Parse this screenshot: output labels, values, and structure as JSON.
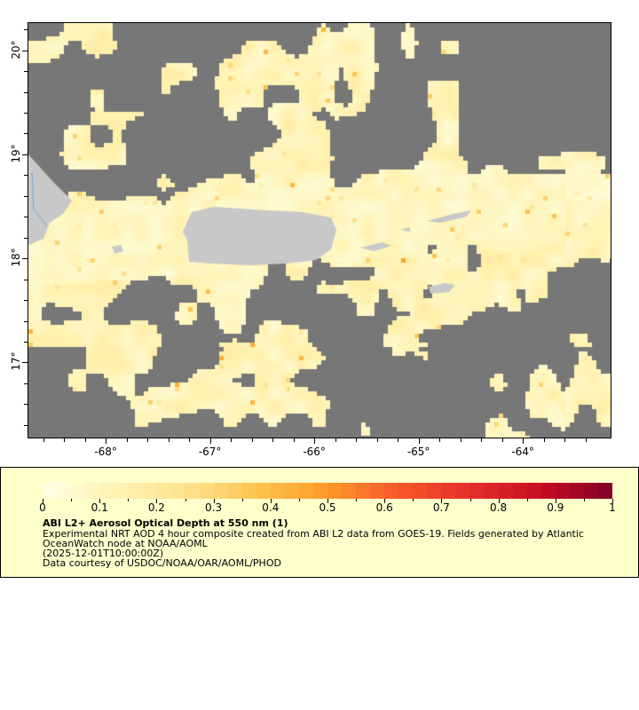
{
  "map": {
    "lon_range": [
      -68.75,
      -63.15
    ],
    "lat_range": [
      16.27,
      20.27
    ],
    "x_ticks": [
      {
        "value": -68,
        "label": "-68°"
      },
      {
        "value": -67,
        "label": "-67°"
      },
      {
        "value": -66,
        "label": "-66°"
      },
      {
        "value": -65,
        "label": "-65°"
      },
      {
        "value": -64,
        "label": "-64°"
      }
    ],
    "y_ticks": [
      {
        "value": 20,
        "label": "20°"
      },
      {
        "value": 19,
        "label": "19°"
      },
      {
        "value": 18,
        "label": "18°"
      },
      {
        "value": 17,
        "label": "17°"
      }
    ],
    "colors": {
      "no_data": "#777777",
      "land": "#c8c8c8",
      "river": "#6fa8dc"
    }
  },
  "legend": {
    "colorbar_range": [
      0,
      1
    ],
    "tick_labels": [
      "0",
      "0.1",
      "0.2",
      "0.3",
      "0.4",
      "0.5",
      "0.6",
      "0.7",
      "0.8",
      "0.9",
      "1"
    ],
    "colormap_stops": [
      "#ffffe5",
      "#fff2b2",
      "#fee391",
      "#fec44f",
      "#fe9929",
      "#f7582b",
      "#e5302a",
      "#c70c22",
      "#800026"
    ],
    "title": "ABI L2+ Aerosol Optical Depth at 550 nm (1)",
    "line1": "Experimental NRT AOD 4 hour composite created from ABI L2 data from GOES-19. Fields generated by Atlantic",
    "line2": "OceanWatch node at NOAA/AOML",
    "line3": "(2025-12-01T10:00:00Z)",
    "line4": "Data courtesy of USDOC/NOAA/OAR/AOML/PHOD"
  }
}
